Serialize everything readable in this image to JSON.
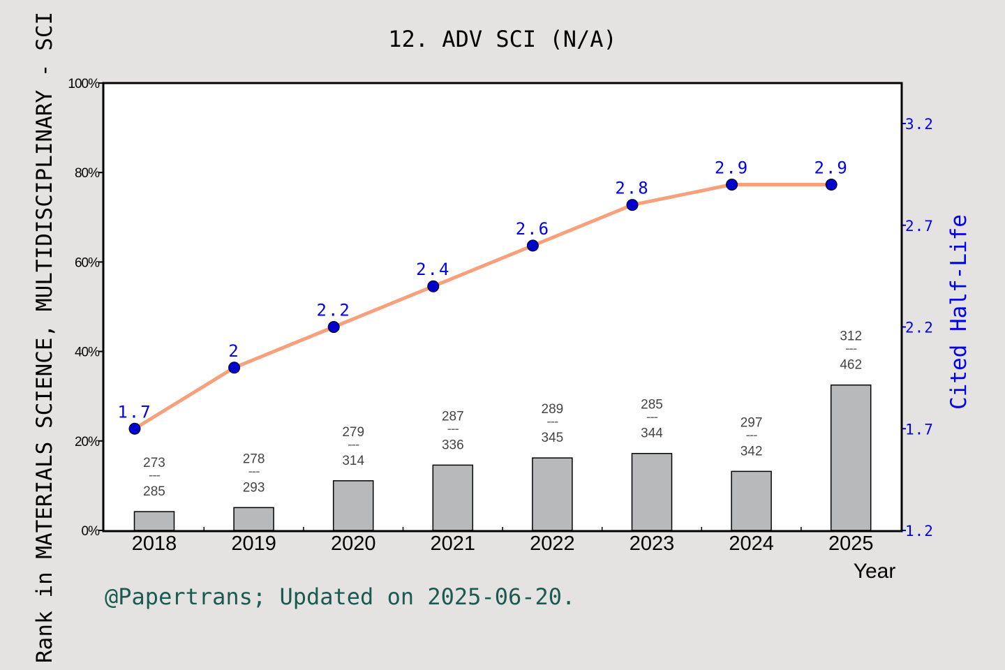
{
  "chart_data": {
    "type": "bar+line",
    "title": "12. ADV SCI (N/A)",
    "xlabel": "Year",
    "ylabel_left": "Rank in MATERIALS SCIENCE, MULTIDISCIPLINARY - SCI",
    "ylabel_right": "Cited Half-Life",
    "categories": [
      "2018",
      "2019",
      "2020",
      "2021",
      "2022",
      "2023",
      "2024",
      "2025"
    ],
    "left_axis": {
      "ylim": [
        0,
        100
      ],
      "ticks": [
        "0%",
        "20%",
        "40%",
        "60%",
        "80%",
        "100%"
      ],
      "tick_values": [
        0,
        20,
        40,
        60,
        80,
        100
      ]
    },
    "right_axis": {
      "ylim": [
        1.2,
        3.4
      ],
      "ticks": [
        "1.2",
        "1.7",
        "2.2",
        "2.7",
        "3.2"
      ],
      "tick_values": [
        1.2,
        1.7,
        2.2,
        2.7,
        3.2
      ]
    },
    "bars": {
      "values_percent": [
        4.2,
        5.1,
        11.1,
        14.6,
        16.2,
        17.2,
        13.2,
        32.5
      ],
      "rank": [
        "273",
        "278",
        "279",
        "287",
        "289",
        "285",
        "297",
        "312"
      ],
      "total": [
        "285",
        "293",
        "314",
        "336",
        "345",
        "344",
        "342",
        "462"
      ],
      "separator": "---",
      "color": "#b8b9bb"
    },
    "line": {
      "values": [
        1.7,
        2.0,
        2.2,
        2.4,
        2.6,
        2.8,
        2.9,
        2.9
      ],
      "labels": [
        "1.7",
        "2",
        "2.2",
        "2.4",
        "2.6",
        "2.8",
        "2.9",
        "2.9"
      ],
      "line_color": "#f7a07c",
      "marker_color": "#0000cc",
      "label_color": "#0000ee"
    },
    "grid": false
  },
  "footer": "@Papertrans; Updated on 2025-06-20.",
  "colors": {
    "background": "#e4e3e1",
    "plot_bg": "#ffffff",
    "footer": "#1a5a50",
    "right_axis": "#0000ee"
  }
}
